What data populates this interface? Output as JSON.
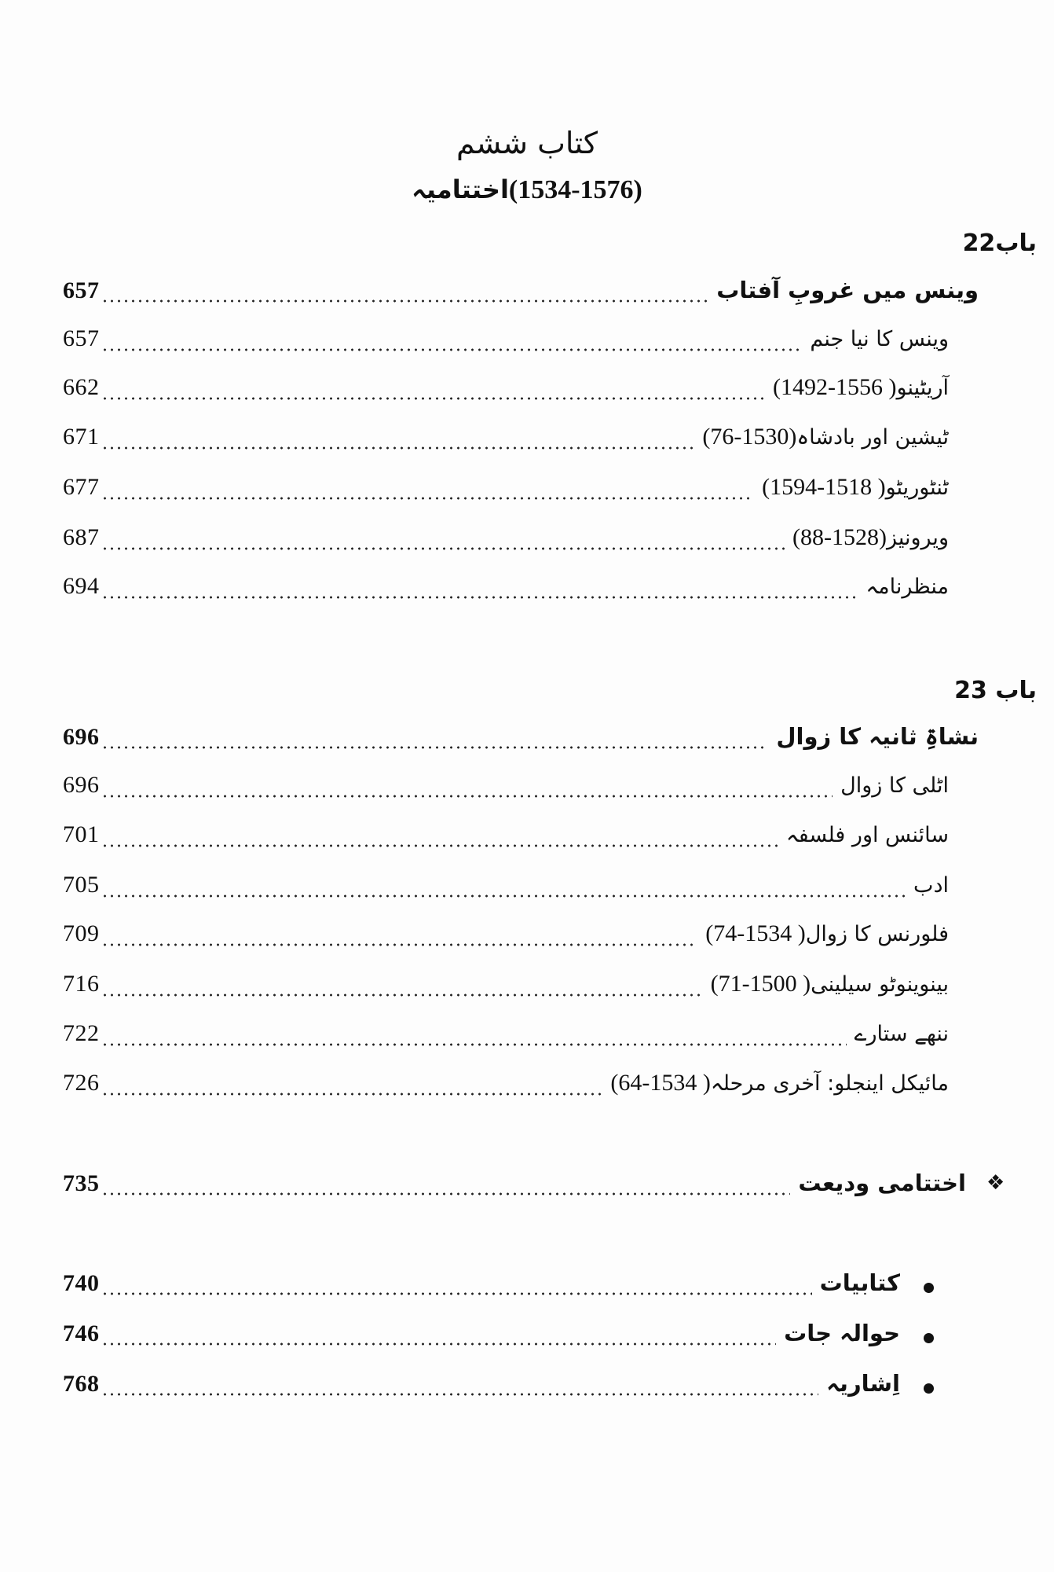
{
  "header": {
    "book_title": "کتاب ششم",
    "subtitle_text": "اختتامیہ",
    "subtitle_years": "(1534-1576)"
  },
  "chapters": [
    {
      "label": "باب22",
      "main": {
        "title": "وینس میں غروبِ آفتاب",
        "page": "657"
      },
      "sections": [
        {
          "title": "وینس کا نیا جنم",
          "years": "",
          "page": "657"
        },
        {
          "title": "آریٹینو",
          "years": "( 1556-1492)",
          "page": "662"
        },
        {
          "title": "ٹیشین  اور بادشاہ",
          "years": "(1530-76)",
          "page": "671"
        },
        {
          "title": "ٹنٹوریٹو",
          "years": "( 1518-1594)",
          "page": "677"
        },
        {
          "title": "ویرونیز",
          "years": "(1528-88)",
          "page": "687"
        },
        {
          "title": "منظرنامہ",
          "years": "",
          "page": "694"
        }
      ]
    },
    {
      "label": "باب 23",
      "main": {
        "title": "نشاۃِ ثانیہ کا زوال",
        "page": "696"
      },
      "sections": [
        {
          "title": "اٹلی کا زوال",
          "years": "",
          "page": "696"
        },
        {
          "title": "سائنس اور فلسفہ",
          "years": "",
          "page": "701"
        },
        {
          "title": "ادب",
          "years": "",
          "page": "705"
        },
        {
          "title": "فلورنس کا زوال",
          "years": "( 1534-74)",
          "page": "709"
        },
        {
          "title": "بینوینوٹو سیلینی",
          "years": "( 1500-71)",
          "page": "716"
        },
        {
          "title": "ننھے ستارے",
          "years": "",
          "page": "722"
        },
        {
          "title": "مائیکل اینجلو: آخری مرحلہ",
          "years": "( 1534-64)",
          "page": "726"
        }
      ]
    }
  ],
  "closing": {
    "title": "اختتامی ودیعت",
    "page": "735",
    "icon": "four-diamond-ornament"
  },
  "appendices": [
    {
      "title": "کتابیات",
      "page": "740"
    },
    {
      "title": "حوالہ جات",
      "page": "746"
    },
    {
      "title": "اِشاریہ",
      "page": "768"
    }
  ]
}
